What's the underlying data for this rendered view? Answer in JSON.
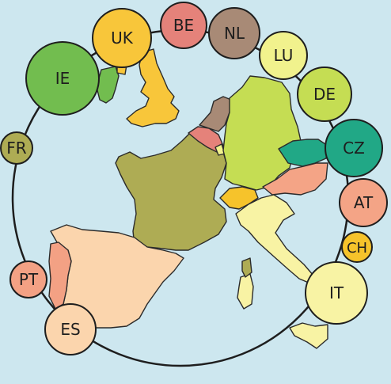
{
  "map": {
    "background": "#cde7ef",
    "countries": [
      {
        "code": "IE",
        "color": "#72bd4f"
      },
      {
        "code": "UK",
        "color": "#f8c63a"
      },
      {
        "code": "BE",
        "color": "#e5827a"
      },
      {
        "code": "NL",
        "color": "#a88a76"
      },
      {
        "code": "LU",
        "color": "#f1f28d"
      },
      {
        "code": "DE",
        "color": "#c5dd53"
      },
      {
        "code": "CZ",
        "color": "#21a886"
      },
      {
        "code": "AT",
        "color": "#f4a486"
      },
      {
        "code": "CH",
        "color": "#f6c32b"
      },
      {
        "code": "IT",
        "color": "#f8f3a4"
      },
      {
        "code": "ES",
        "color": "#fbd5ad"
      },
      {
        "code": "PT",
        "color": "#f3a184"
      },
      {
        "code": "FR",
        "color": "#aeac54"
      }
    ]
  },
  "labels": {
    "uk": "UK",
    "be": "BE",
    "nl": "NL",
    "lu": "LU",
    "ie": "IE",
    "de": "DE",
    "fr": "FR",
    "cz": "CZ",
    "at": "AT",
    "ch": "CH",
    "pt": "PT",
    "it": "IT",
    "es": "ES"
  }
}
